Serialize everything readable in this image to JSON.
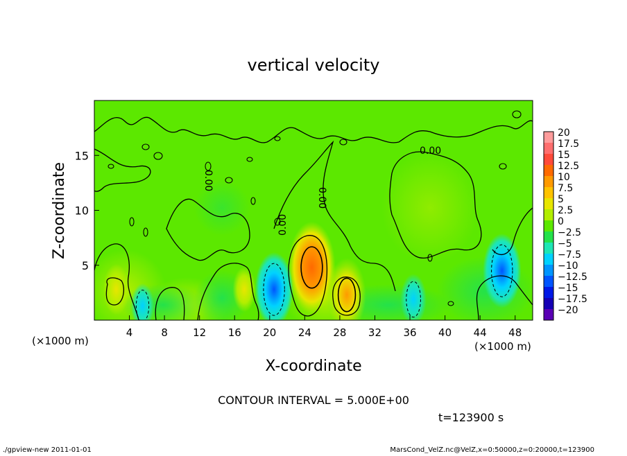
{
  "chart_data": {
    "type": "heatmap",
    "title": "vertical velocity",
    "xlabel": "X-coordinate",
    "ylabel": "Z-coordinate",
    "x_unit_label_left": "(×1000 m)",
    "x_unit_label_right": "(×1000 m)",
    "x_range": [
      0,
      50
    ],
    "y_range": [
      0,
      20
    ],
    "x_ticks": [
      4,
      8,
      12,
      16,
      20,
      24,
      28,
      32,
      36,
      40,
      44,
      48
    ],
    "y_ticks": [
      5,
      10,
      15
    ],
    "contour_label": "0.00",
    "colorbar": {
      "labels": [
        "20",
        "17.5",
        "15",
        "12.5",
        "10",
        "7.5",
        "5",
        "2.5",
        "0",
        "−2.5",
        "−5",
        "−7.5",
        "−10",
        "−12.5",
        "−15",
        "−17.5",
        "−20"
      ],
      "colors": [
        "#ff9c9c",
        "#ff6e6e",
        "#ff4a3a",
        "#ff6a00",
        "#ff9a00",
        "#ffc300",
        "#e8e600",
        "#b2ee00",
        "#5ce800",
        "#24e24a",
        "#1ee6b4",
        "#00d2ff",
        "#0095ff",
        "#0055ff",
        "#0018e6",
        "#1500b4",
        "#5a00b4"
      ]
    },
    "anomalies": [
      {
        "x": 24.8,
        "z": 4.8,
        "w": 11,
        "note": "updraft"
      },
      {
        "x": 28.8,
        "z": 2.3,
        "w": 8,
        "note": "updraft"
      },
      {
        "x": 2.5,
        "z": 2.8,
        "w": 4,
        "note": "updraft"
      },
      {
        "x": 17.1,
        "z": 2.8,
        "w": 3,
        "note": "updraft"
      },
      {
        "x": 20.5,
        "z": 2.8,
        "w": -8,
        "note": "downdraft"
      },
      {
        "x": 46.5,
        "z": 4.5,
        "w": -8,
        "note": "downdraft"
      },
      {
        "x": 36.4,
        "z": 1.9,
        "w": -4,
        "note": "downdraft"
      },
      {
        "x": 5.5,
        "z": 1.3,
        "w": -3,
        "note": "downdraft"
      }
    ]
  },
  "contour_interval": "CONTOUR INTERVAL = 5.000E+00",
  "time_label": "t=123900 s",
  "footer": {
    "left": "./gpview-new   2011-01-01",
    "right": "MarsCond_VelZ.nc@VelZ,x=0:50000,z=0:20000,t=123900"
  }
}
